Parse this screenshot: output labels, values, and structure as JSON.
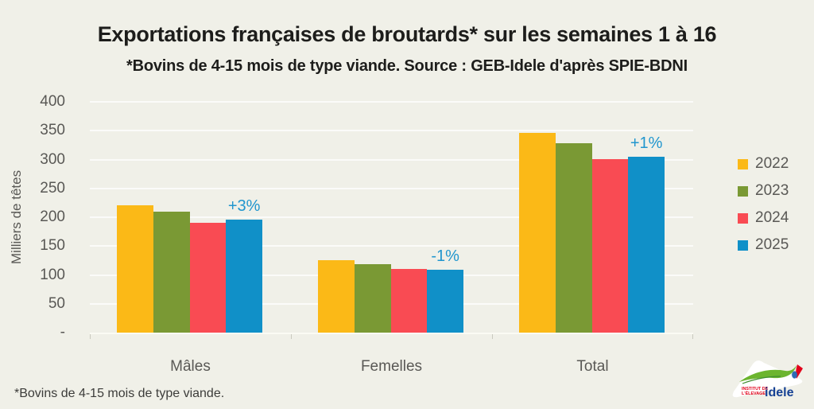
{
  "header": {
    "title": "Exportations françaises de broutards* sur les semaines 1 à 16",
    "subtitle": "*Bovins de 4-15 mois de type viande. Source : GEB-Idele d'après SPIE-BDNI"
  },
  "chart_data": {
    "type": "bar",
    "title": "Exportations françaises de broutards* sur les semaines 1 à 16",
    "subtitle": "*Bovins de 4-15 mois de type viande. Source : GEB-Idele d'après SPIE-BDNI",
    "ylabel": "Milliers de têtes",
    "ylim": [
      0,
      400
    ],
    "ytick_step": 50,
    "ytick_labels": [
      "400",
      "350",
      "300",
      "250",
      "200",
      "150",
      "100",
      "50",
      "-"
    ],
    "grid": true,
    "legend_position": "right",
    "categories": [
      "Mâles",
      "Femelles",
      "Total"
    ],
    "series": [
      {
        "name": "2022",
        "color": "#FBB917",
        "values": [
          221,
          125,
          346
        ]
      },
      {
        "name": "2023",
        "color": "#7A9934",
        "values": [
          210,
          118,
          328
        ]
      },
      {
        "name": "2024",
        "color": "#F94B53",
        "values": [
          191,
          110,
          301
        ]
      },
      {
        "name": "2025",
        "color": "#1090C8",
        "values": [
          196,
          109,
          305
        ]
      }
    ],
    "annotations": [
      {
        "category": "Mâles",
        "series": "2025",
        "text": "+3%"
      },
      {
        "category": "Femelles",
        "series": "2025",
        "text": "-1%"
      },
      {
        "category": "Total",
        "series": "2025",
        "text": "+1%"
      }
    ]
  },
  "footnote": "*Bovins de 4-15 mois de type viande.",
  "logo": {
    "line1": "INSTITUT DE",
    "line2": "L'ÉLEVAGE",
    "brand": "idele"
  },
  "colors": {
    "background": "#F0F0E8",
    "annotation_text": "#2196CE",
    "axis_text": "#595855",
    "title_text": "#1D1D1B",
    "gridline": "#FBFBF4"
  }
}
